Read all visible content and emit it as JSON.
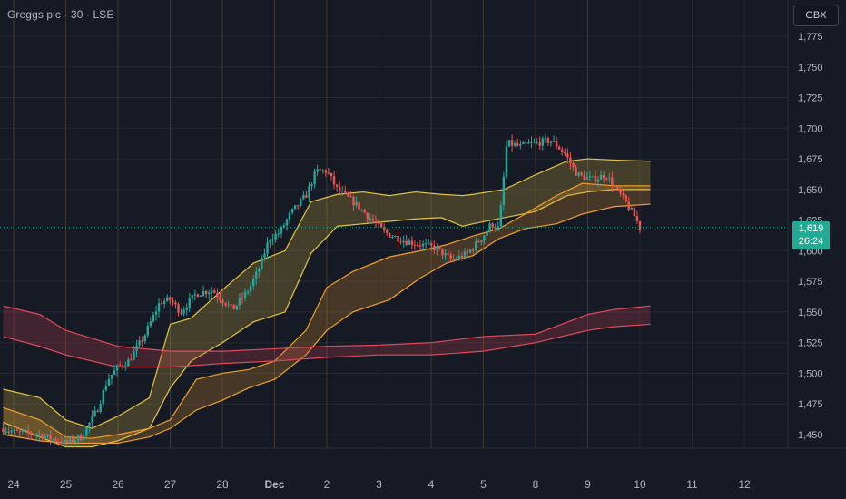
{
  "header": {
    "symbol_title": "Greggs plc · 30 · LSE",
    "currency_button": "GBX"
  },
  "last_price": {
    "value": "1,619",
    "countdown": "26:24",
    "level": 1619,
    "color": "#22ab94"
  },
  "colors": {
    "background": "#161a25",
    "grid": "#232735",
    "session_separator": "#4a3f2c",
    "candle_up": "#26a69a",
    "candle_down": "#ef5350",
    "band_yellow": "#e3c545",
    "band_orange": "#f0a030",
    "band_red": "#e04a5a",
    "axis_text": "#b2b5be"
  },
  "chart_data": {
    "type": "candlestick",
    "title": "Greggs plc · 30 · LSE",
    "y_axis": {
      "ticks": [
        1450,
        1475,
        1500,
        1525,
        1550,
        1575,
        1600,
        1625,
        1650,
        1675,
        1700,
        1725,
        1750,
        1775
      ],
      "tick_labels": [
        "1,450",
        "1,475",
        "1,500",
        "1,525",
        "1,550",
        "1,575",
        "1,600",
        "1,625",
        "1,650",
        "1,675",
        "1,700",
        "1,725",
        "1,750",
        "1,775"
      ],
      "ylim": [
        1443,
        1782
      ],
      "unit": "GBX"
    },
    "x_axis": {
      "ticks": [
        0,
        1,
        2,
        3,
        4,
        5,
        6,
        7,
        8,
        9,
        10,
        11,
        12,
        13,
        14
      ],
      "tick_labels": [
        "24",
        "25",
        "26",
        "27",
        "28",
        "Dec",
        "2",
        "3",
        "4",
        "5",
        "8",
        "9",
        "10",
        "11",
        "12"
      ],
      "xlim": [
        -0.2,
        14.6
      ],
      "day_separators": [
        0,
        1,
        2,
        3,
        4,
        5,
        6,
        7,
        8,
        9,
        10,
        11
      ]
    },
    "price_path": [
      [
        -0.2,
        1455
      ],
      [
        0,
        1452
      ],
      [
        0.5,
        1450
      ],
      [
        1,
        1443
      ],
      [
        1.3,
        1448
      ],
      [
        1.6,
        1470
      ],
      [
        1.8,
        1495
      ],
      [
        2,
        1505
      ],
      [
        2.2,
        1510
      ],
      [
        2.5,
        1530
      ],
      [
        2.8,
        1558
      ],
      [
        3,
        1560
      ],
      [
        3.2,
        1550
      ],
      [
        3.5,
        1565
      ],
      [
        3.8,
        1568
      ],
      [
        4,
        1560
      ],
      [
        4.2,
        1552
      ],
      [
        4.5,
        1568
      ],
      [
        4.7,
        1585
      ],
      [
        4.9,
        1610
      ],
      [
        5.1,
        1615
      ],
      [
        5.3,
        1630
      ],
      [
        5.6,
        1645
      ],
      [
        5.8,
        1665
      ],
      [
        6,
        1665
      ],
      [
        6.2,
        1650
      ],
      [
        6.5,
        1640
      ],
      [
        6.8,
        1628
      ],
      [
        7.1,
        1615
      ],
      [
        7.5,
        1608
      ],
      [
        7.8,
        1605
      ],
      [
        8.1,
        1602
      ],
      [
        8.4,
        1592
      ],
      [
        8.7,
        1598
      ],
      [
        9.0,
        1612
      ],
      [
        9.15,
        1622
      ],
      [
        9.3,
        1618
      ],
      [
        9.45,
        1688
      ],
      [
        9.7,
        1685
      ],
      [
        10.0,
        1688
      ],
      [
        10.3,
        1690
      ],
      [
        10.55,
        1680
      ],
      [
        10.8,
        1662
      ],
      [
        11.1,
        1658
      ],
      [
        11.35,
        1662
      ],
      [
        11.55,
        1650
      ],
      [
        11.75,
        1638
      ],
      [
        11.9,
        1628
      ],
      [
        12.0,
        1619
      ]
    ],
    "bands": [
      {
        "color": "#e3c545",
        "upper": [
          [
            -0.2,
            1487
          ],
          [
            0.5,
            1480
          ],
          [
            1,
            1462
          ],
          [
            1.5,
            1455
          ],
          [
            2,
            1465
          ],
          [
            2.6,
            1480
          ],
          [
            3,
            1540
          ],
          [
            3.4,
            1545
          ],
          [
            4,
            1568
          ],
          [
            4.6,
            1590
          ],
          [
            5.2,
            1600
          ],
          [
            5.7,
            1640
          ],
          [
            6.2,
            1646
          ],
          [
            6.7,
            1648
          ],
          [
            7.2,
            1645
          ],
          [
            7.7,
            1648
          ],
          [
            8.2,
            1646
          ],
          [
            8.6,
            1645
          ],
          [
            8.8,
            1646
          ],
          [
            9.4,
            1650
          ],
          [
            10.0,
            1662
          ],
          [
            10.6,
            1673
          ],
          [
            11.0,
            1675
          ],
          [
            11.5,
            1674
          ],
          [
            12.2,
            1673
          ]
        ],
        "lower": [
          [
            -0.2,
            1460
          ],
          [
            0.5,
            1448
          ],
          [
            1,
            1440
          ],
          [
            1.5,
            1440
          ],
          [
            2,
            1445
          ],
          [
            2.6,
            1455
          ],
          [
            3,
            1488
          ],
          [
            3.4,
            1510
          ],
          [
            4,
            1525
          ],
          [
            4.6,
            1542
          ],
          [
            5.2,
            1550
          ],
          [
            5.7,
            1598
          ],
          [
            6.2,
            1620
          ],
          [
            6.7,
            1622
          ],
          [
            7.2,
            1624
          ],
          [
            7.7,
            1626
          ],
          [
            8.2,
            1627
          ],
          [
            8.6,
            1620
          ],
          [
            8.8,
            1622
          ],
          [
            9.4,
            1627
          ],
          [
            10.0,
            1632
          ],
          [
            10.6,
            1645
          ],
          [
            11.0,
            1648
          ],
          [
            11.5,
            1650
          ],
          [
            12.2,
            1650
          ]
        ]
      },
      {
        "color": "#f0a030",
        "upper": [
          [
            -0.2,
            1472
          ],
          [
            0.5,
            1462
          ],
          [
            1,
            1448
          ],
          [
            1.5,
            1447
          ],
          [
            2,
            1450
          ],
          [
            2.6,
            1455
          ],
          [
            3,
            1462
          ],
          [
            3.5,
            1495
          ],
          [
            4,
            1500
          ],
          [
            4.5,
            1503
          ],
          [
            5,
            1510
          ],
          [
            5.6,
            1535
          ],
          [
            6.0,
            1570
          ],
          [
            6.5,
            1583
          ],
          [
            7.2,
            1595
          ],
          [
            7.8,
            1600
          ],
          [
            8.3,
            1605
          ],
          [
            8.8,
            1612
          ],
          [
            9.3,
            1618
          ],
          [
            9.8,
            1630
          ],
          [
            10.4,
            1645
          ],
          [
            10.9,
            1655
          ],
          [
            11.5,
            1653
          ],
          [
            12.2,
            1653
          ]
        ],
        "lower": [
          [
            -0.2,
            1450
          ],
          [
            0.5,
            1445
          ],
          [
            1,
            1443
          ],
          [
            1.5,
            1443
          ],
          [
            2,
            1443
          ],
          [
            2.6,
            1448
          ],
          [
            3,
            1455
          ],
          [
            3.5,
            1470
          ],
          [
            4,
            1478
          ],
          [
            4.5,
            1488
          ],
          [
            5,
            1495
          ],
          [
            5.6,
            1515
          ],
          [
            6.0,
            1535
          ],
          [
            6.5,
            1550
          ],
          [
            7.2,
            1560
          ],
          [
            7.8,
            1578
          ],
          [
            8.3,
            1590
          ],
          [
            8.8,
            1596
          ],
          [
            9.3,
            1610
          ],
          [
            9.8,
            1618
          ],
          [
            10.4,
            1622
          ],
          [
            10.9,
            1630
          ],
          [
            11.5,
            1636
          ],
          [
            12.2,
            1638
          ]
        ]
      },
      {
        "color": "#e04a5a",
        "upper": [
          [
            -0.2,
            1555
          ],
          [
            0.5,
            1548
          ],
          [
            1,
            1535
          ],
          [
            2,
            1522
          ],
          [
            3,
            1518
          ],
          [
            4,
            1518
          ],
          [
            5,
            1520
          ],
          [
            6,
            1522
          ],
          [
            7,
            1523
          ],
          [
            8,
            1525
          ],
          [
            9,
            1530
          ],
          [
            10,
            1532
          ],
          [
            10.5,
            1540
          ],
          [
            11,
            1548
          ],
          [
            11.5,
            1552
          ],
          [
            12.2,
            1555
          ]
        ],
        "lower": [
          [
            -0.2,
            1530
          ],
          [
            0.5,
            1522
          ],
          [
            1,
            1515
          ],
          [
            2,
            1505
          ],
          [
            3,
            1505
          ],
          [
            4,
            1508
          ],
          [
            5,
            1510
          ],
          [
            6,
            1513
          ],
          [
            7,
            1515
          ],
          [
            8,
            1515
          ],
          [
            9,
            1518
          ],
          [
            10,
            1525
          ],
          [
            10.5,
            1530
          ],
          [
            11,
            1535
          ],
          [
            11.5,
            1538
          ],
          [
            12.2,
            1540
          ]
        ]
      }
    ],
    "grid": true
  }
}
